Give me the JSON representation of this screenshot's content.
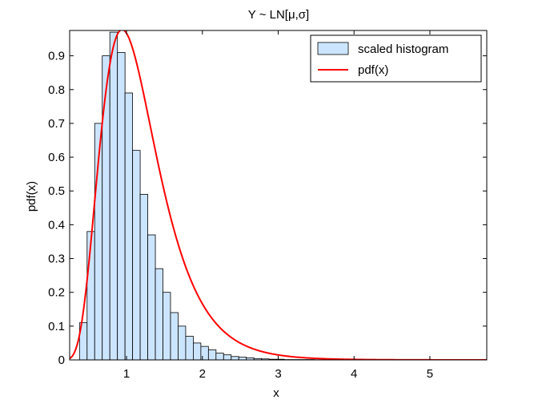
{
  "chart_data": {
    "type": "bar",
    "title": "Y ~ LN[μ,σ]",
    "xlabel": "x",
    "ylabel": "pdf(x)",
    "xlim": [
      0.25,
      5.75
    ],
    "ylim": [
      0,
      0.975
    ],
    "xticks": [
      1,
      2,
      3,
      4,
      5
    ],
    "yticks": [
      0,
      0.1,
      0.2,
      0.3,
      0.4,
      0.5,
      0.6,
      0.7,
      0.8,
      0.9
    ],
    "grid": false,
    "legend_position": "top-right",
    "series": [
      {
        "name": "scaled histogram",
        "type": "histogram",
        "color": "#cce5ff",
        "edge_color": "#000000",
        "bin_width": 0.1,
        "bin_edges": [
          0.38,
          0.48,
          0.58,
          0.68,
          0.78,
          0.88,
          0.98,
          1.08,
          1.18,
          1.28,
          1.38,
          1.48,
          1.58,
          1.68,
          1.78,
          1.88,
          1.98,
          2.08,
          2.18,
          2.28,
          2.38,
          2.48,
          2.58,
          2.68,
          2.78,
          2.88,
          2.98,
          3.08,
          3.18,
          3.28,
          3.38,
          3.48,
          3.58
        ],
        "values": [
          0.11,
          0.38,
          0.7,
          0.9,
          0.97,
          0.91,
          0.79,
          0.62,
          0.49,
          0.37,
          0.27,
          0.2,
          0.14,
          0.1,
          0.07,
          0.05,
          0.04,
          0.03,
          0.02,
          0.015,
          0.01,
          0.008,
          0.006,
          0.004,
          0.003,
          0.002,
          0.002,
          0.001,
          0.001,
          0.001,
          0.001,
          0.0005
        ]
      },
      {
        "name": "pdf(x)",
        "type": "line",
        "color": "#ff0000",
        "distribution": "lognormal",
        "mu": 0.1,
        "sigma": 0.4,
        "x_range": [
          0.25,
          5.75
        ]
      }
    ]
  }
}
